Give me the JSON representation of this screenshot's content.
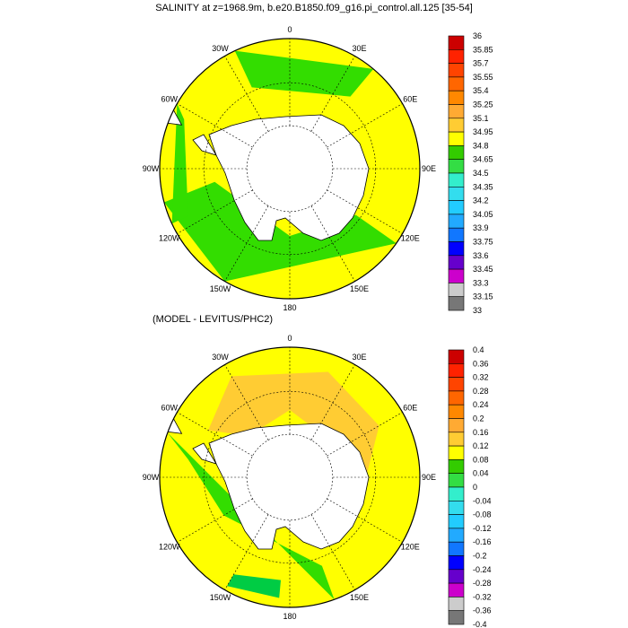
{
  "titles": {
    "main": "SALINITY at z=1968.9m, b.e20.B1850.f09_g16.pi_control.all.125 [35-54]",
    "sub": "(MODEL - LEVITUS/PHC2)"
  },
  "maps": [
    {
      "id": "salinity",
      "lon_labels": [
        "0",
        "30E",
        "60E",
        "90E",
        "120E",
        "150E",
        "180",
        "150W",
        "120W",
        "90W",
        "60W",
        "30W"
      ],
      "colors": {
        "ocean_main": "#ffff00",
        "ocean_alt": "#33dd00",
        "land": "#ffffff"
      }
    },
    {
      "id": "difference",
      "lon_labels": [
        "0",
        "30E",
        "60E",
        "90E",
        "120E",
        "150E",
        "180",
        "150W",
        "120W",
        "90W",
        "60W",
        "30W"
      ],
      "colors": {
        "ocean_main": "#ffff00",
        "ocean_alt": "#33dd00",
        "ocean_warm": "#ffcc33",
        "ocean_deep": "#00cc44",
        "land": "#ffffff"
      }
    }
  ],
  "colorbars": [
    {
      "id": "salinity-bar",
      "labels": [
        "36",
        "35.85",
        "35.7",
        "35.55",
        "35.4",
        "35.25",
        "35.1",
        "34.95",
        "34.8",
        "34.65",
        "34.5",
        "34.35",
        "34.2",
        "34.05",
        "33.9",
        "33.75",
        "33.6",
        "33.45",
        "33.3",
        "33.15",
        "33"
      ],
      "colors": [
        "#cc0000",
        "#ff2200",
        "#ff4400",
        "#ff6600",
        "#ff8800",
        "#ffaa33",
        "#ffcc33",
        "#ffff00",
        "#33cc00",
        "#33dd44",
        "#33eecc",
        "#33ddee",
        "#22ccff",
        "#22aaff",
        "#1177ff",
        "#0000ff",
        "#6600cc",
        "#cc00cc",
        "#cccccc",
        "#777777"
      ]
    },
    {
      "id": "difference-bar",
      "labels": [
        "0.4",
        "0.36",
        "0.32",
        "0.28",
        "0.24",
        "0.2",
        "0.16",
        "0.12",
        "0.08",
        "0.04",
        "0",
        "-0.04",
        "-0.08",
        "-0.12",
        "-0.16",
        "-0.2",
        "-0.24",
        "-0.28",
        "-0.32",
        "-0.36",
        "-0.4"
      ],
      "colors": [
        "#cc0000",
        "#ff2200",
        "#ff4400",
        "#ff6600",
        "#ff8800",
        "#ffaa33",
        "#ffcc33",
        "#ffff00",
        "#33cc00",
        "#33dd44",
        "#33eecc",
        "#33ddee",
        "#22ccff",
        "#22aaff",
        "#1177ff",
        "#0000ff",
        "#6600cc",
        "#cc00cc",
        "#cccccc",
        "#777777"
      ]
    }
  ]
}
